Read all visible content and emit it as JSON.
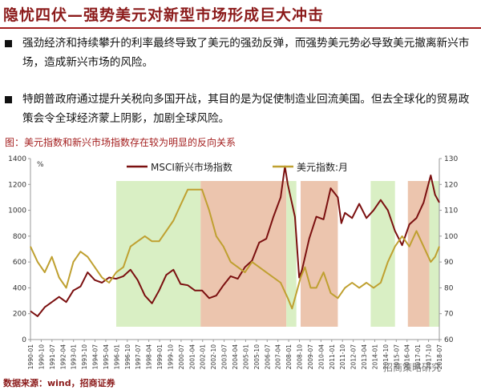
{
  "page": {
    "title": "隐忧四伏—强势美元对新型市场形成巨大冲击",
    "bullets": [
      "强劲经济和持续攀升的利率最终导致了美元的强劲反弹，而强势美元势必导致美元撤离新兴市场，造成新兴市场的风险。",
      "特朗普政府通过提升关税向多国开战，其目的是为促使制造业回流美国。但去全球化的贸易政策会令全球经济蒙上阴影，加剧全球风险。"
    ],
    "chart_caption": "图：美元指数和新兴市场指数存在较为明显的反向关系",
    "source": "数据来源：wind，招商证券",
    "watermark": "招商策略研究"
  },
  "chart_data": {
    "type": "line",
    "title": "",
    "left_axis_unit": "%",
    "ylim_left": [
      0,
      1400
    ],
    "ylim_right": [
      60,
      130
    ],
    "yticks_left": [
      0,
      200,
      400,
      600,
      800,
      1000,
      1200,
      1400
    ],
    "yticks_right": [
      60,
      70,
      80,
      90,
      100,
      110,
      120,
      130
    ],
    "x_range": [
      1990.0,
      2018.6
    ],
    "x_tick_labels": [
      "1990-01",
      "1990-10",
      "1991-07",
      "1992-04",
      "1993-01",
      "1993-10",
      "1994-07",
      "1995-04",
      "1996-01",
      "1996-10",
      "1997-07",
      "1998-04",
      "1999-01",
      "1999-10",
      "2000-07",
      "2001-04",
      "2002-01",
      "2002-10",
      "2003-07",
      "2004-04",
      "2005-01",
      "2005-10",
      "2006-07",
      "2007-04",
      "2008-01",
      "2008-10",
      "2009-07",
      "2010-04",
      "2011-01",
      "2011-10",
      "2012-07",
      "2013-04",
      "2014-01",
      "2014-10",
      "2015-07",
      "2016-04",
      "2017-01",
      "2017-10",
      "2018-07"
    ],
    "legend_placement": "top",
    "grid": false,
    "shaded_periods": [
      {
        "start": 1996.0,
        "end": 2001.9,
        "color": "#d9efc4"
      },
      {
        "start": 2001.9,
        "end": 2007.9,
        "color": "#ecc5ae"
      },
      {
        "start": 2007.9,
        "end": 2008.6,
        "color": "#d9efc4"
      },
      {
        "start": 2008.9,
        "end": 2011.5,
        "color": "#ecc5ae"
      },
      {
        "start": 2013.8,
        "end": 2015.5,
        "color": "#d9efc4"
      },
      {
        "start": 2016.4,
        "end": 2017.9,
        "color": "#ecc5ae"
      },
      {
        "start": 2017.9,
        "end": 2018.6,
        "color": "#d9efc4"
      }
    ],
    "series": [
      {
        "name": "MSCI新兴市场指数",
        "axis": "left",
        "color": "#7b1010",
        "x": [
          1990.0,
          1990.5,
          1991.0,
          1991.5,
          1992.0,
          1992.5,
          1993.0,
          1993.5,
          1994.0,
          1994.5,
          1995.0,
          1995.5,
          1996.0,
          1996.5,
          1997.0,
          1997.5,
          1998.0,
          1998.5,
          1999.0,
          1999.5,
          2000.0,
          2000.5,
          2001.0,
          2001.5,
          2002.0,
          2002.5,
          2003.0,
          2003.5,
          2004.0,
          2004.5,
          2005.0,
          2005.5,
          2006.0,
          2006.5,
          2007.0,
          2007.5,
          2007.8,
          2008.0,
          2008.5,
          2008.8,
          2009.0,
          2009.5,
          2010.0,
          2010.5,
          2011.0,
          2011.5,
          2011.75,
          2012.0,
          2012.5,
          2013.0,
          2013.5,
          2014.0,
          2014.5,
          2015.0,
          2015.5,
          2016.0,
          2016.5,
          2017.0,
          2017.5,
          2018.0,
          2018.3,
          2018.6
        ],
        "values": [
          220,
          180,
          250,
          290,
          330,
          290,
          380,
          410,
          520,
          460,
          440,
          480,
          470,
          490,
          540,
          460,
          340,
          280,
          380,
          500,
          540,
          430,
          420,
          380,
          380,
          320,
          340,
          420,
          490,
          470,
          560,
          610,
          750,
          780,
          950,
          1100,
          1340,
          1200,
          950,
          480,
          540,
          780,
          950,
          930,
          1170,
          1100,
          900,
          980,
          940,
          1050,
          940,
          1000,
          1080,
          1000,
          840,
          730,
          890,
          940,
          1060,
          1270,
          1120,
          1060
        ]
      },
      {
        "name": "美元指数:月",
        "axis": "right",
        "color": "#bfa030",
        "x": [
          1990.0,
          1990.5,
          1991.0,
          1991.5,
          1992.0,
          1992.5,
          1993.0,
          1993.5,
          1994.0,
          1994.5,
          1995.0,
          1995.5,
          1996.0,
          1996.5,
          1997.0,
          1997.5,
          1998.0,
          1998.5,
          1999.0,
          1999.5,
          2000.0,
          2000.5,
          2001.0,
          2001.5,
          2002.0,
          2002.5,
          2003.0,
          2003.5,
          2004.0,
          2004.5,
          2005.0,
          2005.5,
          2006.0,
          2006.5,
          2007.0,
          2007.5,
          2008.0,
          2008.3,
          2008.6,
          2008.9,
          2009.2,
          2009.6,
          2010.0,
          2010.5,
          2011.0,
          2011.5,
          2012.0,
          2012.5,
          2013.0,
          2013.5,
          2014.0,
          2014.5,
          2015.0,
          2015.5,
          2016.0,
          2016.5,
          2017.0,
          2017.5,
          2018.0,
          2018.3,
          2018.6
        ],
        "values": [
          96,
          90,
          86,
          92,
          84,
          80,
          90,
          94,
          92,
          88,
          84,
          82,
          86,
          88,
          96,
          98,
          100,
          98,
          98,
          102,
          106,
          112,
          118,
          118,
          118,
          110,
          100,
          96,
          90,
          88,
          86,
          90,
          88,
          86,
          84,
          82,
          76,
          72,
          78,
          84,
          88,
          80,
          80,
          86,
          78,
          76,
          80,
          82,
          80,
          82,
          80,
          82,
          90,
          96,
          100,
          96,
          102,
          96,
          90,
          92,
          96
        ]
      }
    ]
  }
}
